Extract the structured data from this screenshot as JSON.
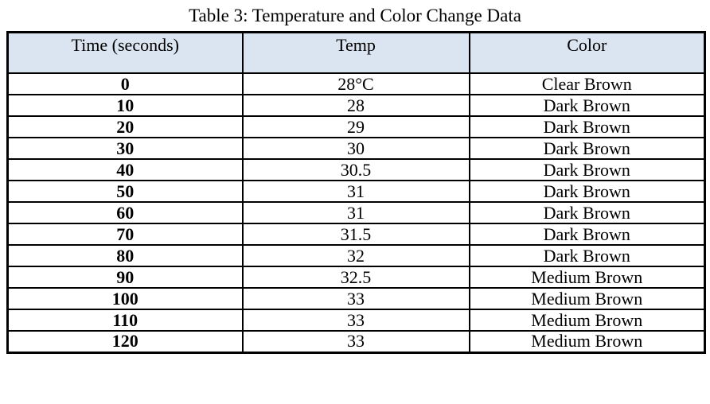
{
  "title": "Table 3: Temperature and Color Change Data",
  "colors": {
    "header_bg": "#dbe5f1",
    "border": "#000000",
    "text": "#000000"
  },
  "table": {
    "columns": {
      "time": "Time (seconds)",
      "temp": "Temp",
      "color": "Color"
    },
    "rows": [
      {
        "time": "0",
        "temp": "28°C",
        "color": "Clear Brown"
      },
      {
        "time": "10",
        "temp": "28",
        "color": "Dark Brown"
      },
      {
        "time": "20",
        "temp": "29",
        "color": "Dark Brown"
      },
      {
        "time": "30",
        "temp": "30",
        "color": "Dark Brown"
      },
      {
        "time": "40",
        "temp": "30.5",
        "color": "Dark Brown"
      },
      {
        "time": "50",
        "temp": "31",
        "color": "Dark Brown"
      },
      {
        "time": "60",
        "temp": "31",
        "color": "Dark Brown"
      },
      {
        "time": "70",
        "temp": "31.5",
        "color": "Dark Brown"
      },
      {
        "time": "80",
        "temp": "32",
        "color": "Dark Brown"
      },
      {
        "time": "90",
        "temp": "32.5",
        "color": "Medium Brown"
      },
      {
        "time": "100",
        "temp": "33",
        "color": "Medium Brown"
      },
      {
        "time": "110",
        "temp": "33",
        "color": "Medium Brown"
      },
      {
        "time": "120",
        "temp": "33",
        "color": "Medium Brown"
      }
    ]
  },
  "chart_data": {
    "type": "table",
    "title": "Table 3: Temperature and Color Change Data",
    "categories": [
      0,
      10,
      20,
      30,
      40,
      50,
      60,
      70,
      80,
      90,
      100,
      110,
      120
    ],
    "series": [
      {
        "name": "Temp (°C)",
        "values": [
          28,
          28,
          29,
          30,
          30.5,
          31,
          31,
          31.5,
          32,
          32.5,
          33,
          33,
          33
        ]
      },
      {
        "name": "Color",
        "values": [
          "Clear Brown",
          "Dark Brown",
          "Dark Brown",
          "Dark Brown",
          "Dark Brown",
          "Dark Brown",
          "Dark Brown",
          "Dark Brown",
          "Dark Brown",
          "Medium Brown",
          "Medium Brown",
          "Medium Brown",
          "Medium Brown"
        ]
      }
    ]
  }
}
